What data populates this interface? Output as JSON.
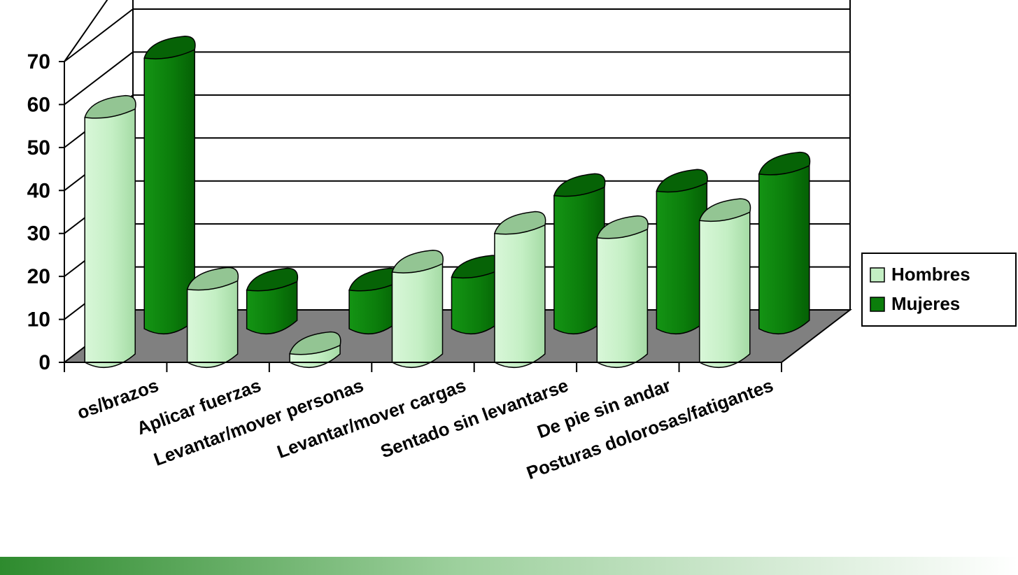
{
  "colors": {
    "hombres_front": "#c4efc4",
    "hombres_top": "#93c593",
    "mujeres_front": "#0b7d0b",
    "mujeres_top": "#066306",
    "floor": "#808080",
    "band_start": "#2e8b2e",
    "band_end": "#ffffff"
  },
  "chart_data": {
    "type": "bar",
    "title": "",
    "xlabel": "",
    "ylabel": "",
    "ylim": [
      0,
      70
    ],
    "yticks": [
      0,
      10,
      20,
      30,
      40,
      50,
      60,
      70
    ],
    "ytick_labels": [
      "0",
      "10",
      "20",
      "30",
      "40",
      "50",
      "60",
      "70"
    ],
    "grid": true,
    "legend_position": "right",
    "categories": [
      "Movimientos repetitivos manos/brazos",
      "Aplicar fuerzas",
      "Levantar/mover personas",
      "Levantar/mover cargas",
      "Sentado sin levantarse",
      "De pie sin andar",
      "Posturas dolorosas/fatigantes"
    ],
    "category_labels_visible": [
      "os/brazos",
      "Aplicar fuerzas",
      "Levantar/mover personas",
      "Levantar/mover cargas",
      "Sentado sin levantarse",
      "De pie sin andar",
      "Posturas dolorosas/fatigantes"
    ],
    "series": [
      {
        "name": "Hombres",
        "values": [
          57,
          17,
          2,
          21,
          30,
          29,
          33
        ]
      },
      {
        "name": "Mujeres",
        "values": [
          63,
          9,
          9,
          12,
          31,
          32,
          36
        ]
      }
    ]
  }
}
